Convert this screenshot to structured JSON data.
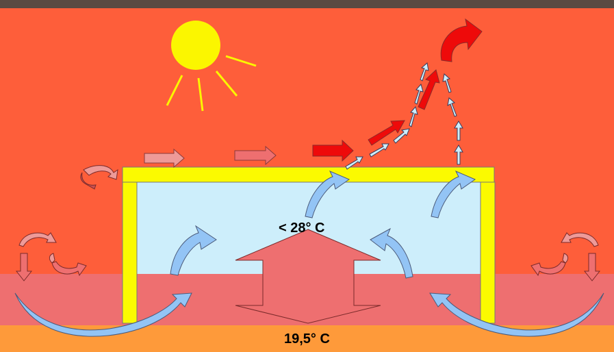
{
  "labels": {
    "inside_temperature": "< 28° C",
    "ground_temperature": "19,5° C"
  },
  "colors": {
    "sky": "#fe5e3a",
    "soil": "#ee6f70",
    "deep_soil": "#fe9a3a",
    "interior": "#cdeefb",
    "wall": "#fbfa00",
    "sun": "#fbf600",
    "hot_air": "#ee0a0a",
    "cool_air": "#93c4f5",
    "big_arrow": "#ee6f70"
  },
  "icons": [
    "sun-icon",
    "hot-air-arrow-icon",
    "cool-air-arrow-icon",
    "double-arrow-icon",
    "circulation-icon"
  ]
}
